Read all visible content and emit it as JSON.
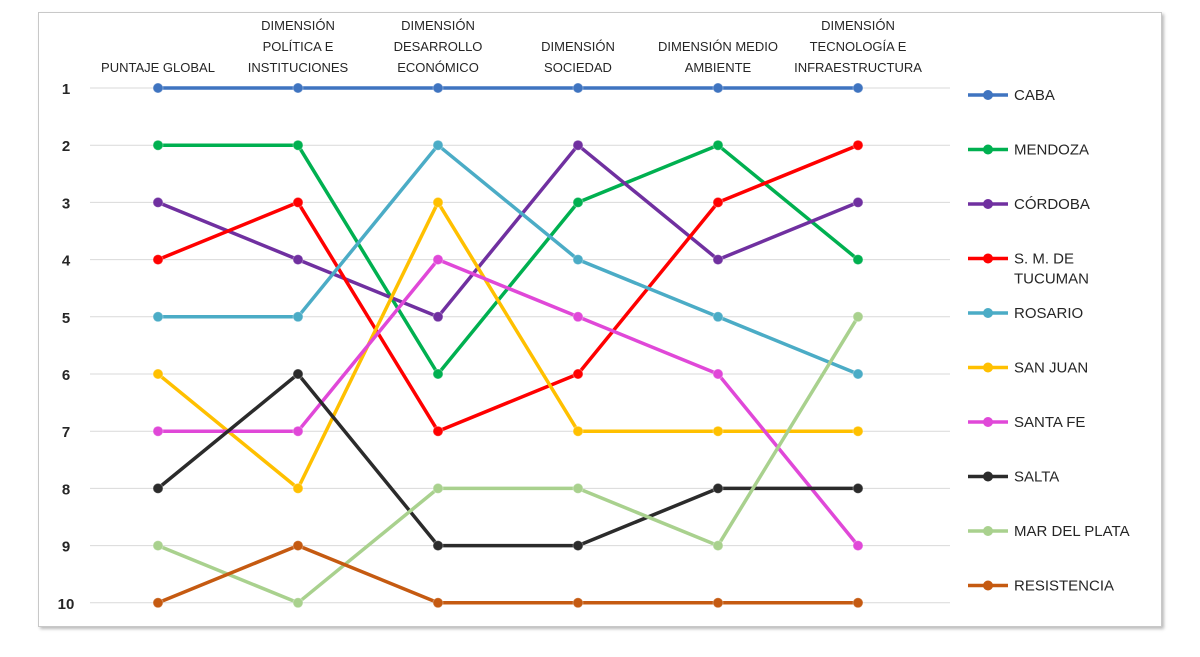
{
  "chart_data": {
    "type": "line",
    "title": "",
    "categories": [
      [
        "PUNTAJE GLOBAL"
      ],
      [
        "DIMENSIÓN",
        "POLÍTICA E",
        "INSTITUCIONES"
      ],
      [
        "DIMENSIÓN",
        "DESARROLLO",
        "ECONÓMICO"
      ],
      [
        "DIMENSIÓN",
        "SOCIEDAD"
      ],
      [
        "DIMENSIÓN MEDIO",
        "AMBIENTE"
      ],
      [
        "DIMENSIÓN",
        "TECNOLOGÍA E",
        "INFRAESTRUCTURA"
      ]
    ],
    "y_ticks": [
      "1",
      "2",
      "3",
      "4",
      "5",
      "6",
      "7",
      "8",
      "9",
      "10"
    ],
    "ylim": [
      1,
      10
    ],
    "y_reversed": true,
    "grid": true,
    "legend_position": "right",
    "series": [
      {
        "name": [
          "CABA"
        ],
        "color": "#3f74c0",
        "values": [
          1,
          1,
          1,
          1,
          1,
          1
        ]
      },
      {
        "name": [
          "MENDOZA"
        ],
        "color": "#00b050",
        "values": [
          2,
          2,
          6,
          3,
          2,
          4
        ]
      },
      {
        "name": [
          "CÓRDOBA"
        ],
        "color": "#7030a0",
        "values": [
          3,
          4,
          5,
          2,
          4,
          3
        ]
      },
      {
        "name": [
          "S. M.  DE",
          "TUCUMAN"
        ],
        "color": "#ff0000",
        "values": [
          4,
          3,
          7,
          6,
          3,
          2
        ]
      },
      {
        "name": [
          "ROSARIO"
        ],
        "color": "#4bacc6",
        "values": [
          5,
          5,
          2,
          4,
          5,
          6
        ]
      },
      {
        "name": [
          "SAN JUAN"
        ],
        "color": "#ffc000",
        "values": [
          6,
          8,
          3,
          7,
          7,
          7
        ]
      },
      {
        "name": [
          "SANTA FE"
        ],
        "color": "#e048d8",
        "values": [
          7,
          7,
          4,
          5,
          6,
          9
        ]
      },
      {
        "name": [
          "SALTA"
        ],
        "color": "#2b2b2b",
        "values": [
          8,
          6,
          9,
          9,
          8,
          8
        ]
      },
      {
        "name": [
          "MAR DEL PLATA"
        ],
        "color": "#a9d18e",
        "values": [
          9,
          10,
          8,
          8,
          9,
          5
        ]
      },
      {
        "name": [
          "RESISTENCIA"
        ],
        "color": "#c55a11",
        "values": [
          10,
          9,
          10,
          10,
          10,
          10
        ]
      }
    ]
  }
}
